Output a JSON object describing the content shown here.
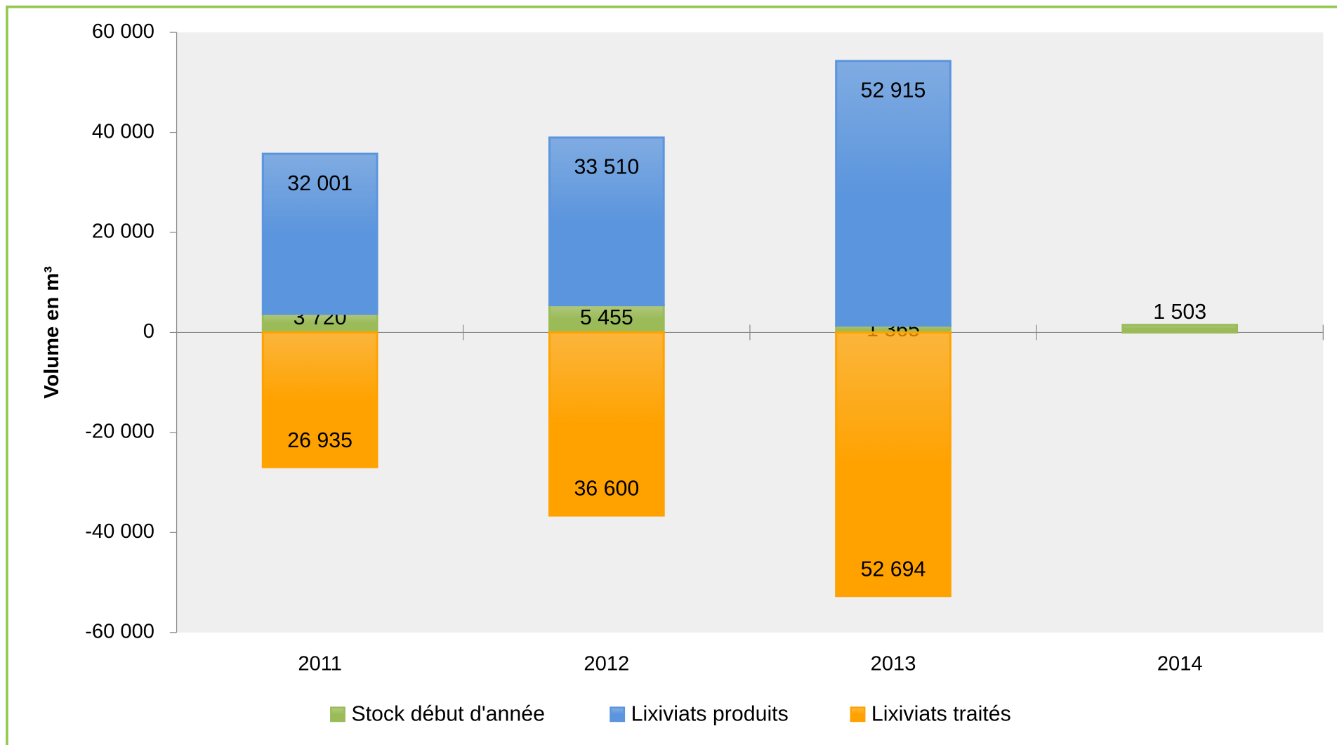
{
  "chart_data": {
    "type": "bar",
    "stacked": true,
    "y_label": "Volume en m³",
    "categories": [
      "2011",
      "2012",
      "2013",
      "2014"
    ],
    "series": [
      {
        "name": "Stock début d'année",
        "color": "#9bbb59",
        "values": [
          3720,
          5455,
          1365,
          1503
        ],
        "value_labels": [
          "3 720",
          "5 455",
          "1 365",
          "1 503"
        ]
      },
      {
        "name": "Lixiviats produits",
        "color": "#5b95dd",
        "values": [
          32001,
          33510,
          52915,
          null
        ],
        "value_labels": [
          "32 001",
          "33 510",
          "52 915",
          null
        ]
      },
      {
        "name": "Lixiviats traités",
        "color": "#ffa200",
        "values": [
          -26935,
          -36600,
          -52694,
          null
        ],
        "value_labels": [
          "26 935",
          "36 600",
          "52 694",
          null
        ]
      }
    ],
    "ylim": [
      -60000,
      60000
    ],
    "yticks": [
      {
        "value": -60000,
        "label": "-60 000"
      },
      {
        "value": -40000,
        "label": "-40 000"
      },
      {
        "value": -20000,
        "label": "-20 000"
      },
      0,
      {
        "value": 20000,
        "label": "20 000"
      },
      {
        "value": 40000,
        "label": "40 000"
      },
      {
        "value": 60000,
        "label": "60 000"
      }
    ],
    "legend": "bottom"
  }
}
